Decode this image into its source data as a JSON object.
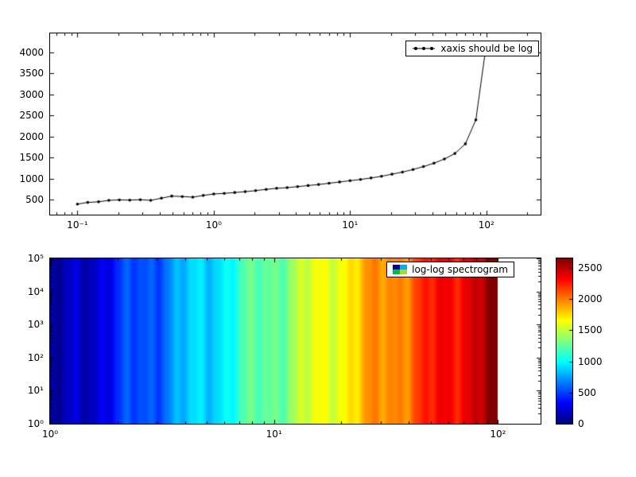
{
  "figure": {
    "background": "#ffffff"
  },
  "chart_data": [
    {
      "type": "line",
      "title": "",
      "xlabel": "",
      "ylabel": "",
      "xscale": "log",
      "yscale": "linear",
      "grid": false,
      "xlim": [
        0.063,
        250
      ],
      "ylim": [
        150,
        4450
      ],
      "x_ticks": [
        0.1,
        1,
        10,
        100
      ],
      "x_tick_labels": [
        "10⁻¹",
        "10⁰",
        "10¹",
        "10²"
      ],
      "y_ticks": [
        500,
        1000,
        1500,
        2000,
        2500,
        3000,
        3500,
        4000
      ],
      "y_tick_labels": [
        "500",
        "1000",
        "1500",
        "2000",
        "2500",
        "3000",
        "3500",
        "4000"
      ],
      "legend": {
        "label": "xaxis should be log",
        "position": "upper right"
      },
      "line_color": "#000000",
      "marker": "dot",
      "x": [
        0.1,
        0.119,
        0.143,
        0.17,
        0.203,
        0.242,
        0.289,
        0.345,
        0.413,
        0.492,
        0.588,
        0.702,
        0.838,
        1.0,
        1.194,
        1.425,
        1.701,
        2.031,
        2.424,
        2.894,
        3.455,
        4.125,
        4.924,
        5.878,
        7.017,
        8.377,
        10.0,
        11.94,
        14.25,
        17.01,
        20.31,
        24.24,
        28.94,
        34.55,
        41.25,
        49.24,
        58.78,
        70.17,
        83.77,
        100.0
      ],
      "y": [
        400,
        440,
        455,
        490,
        500,
        495,
        505,
        490,
        540,
        590,
        580,
        565,
        605,
        640,
        655,
        675,
        695,
        720,
        750,
        775,
        790,
        815,
        840,
        865,
        895,
        925,
        955,
        985,
        1020,
        1060,
        1110,
        1160,
        1220,
        1290,
        1370,
        1470,
        1600,
        1830,
        2400,
        4200
      ]
    },
    {
      "type": "heatmap",
      "title": "",
      "xscale": "log",
      "yscale": "log",
      "xlim": [
        1,
        155
      ],
      "ylim": [
        1,
        100000
      ],
      "mesh_x_range": [
        1,
        100
      ],
      "value_range": [
        0,
        2600
      ],
      "colormap": "jet",
      "x_ticks": [
        1,
        10,
        100
      ],
      "x_tick_labels": [
        "10⁰",
        "10¹",
        "10²"
      ],
      "y_ticks": [
        1,
        10,
        100,
        1000,
        10000,
        100000
      ],
      "y_tick_labels": [
        "10⁰",
        "10¹",
        "10²",
        "10³",
        "10⁴",
        "10⁵"
      ],
      "legend": {
        "label": "log-log spectrogram",
        "position": "upper right",
        "icon_colors": [
          "#000099",
          "#00aaff",
          "#00bb44",
          "#aadd22"
        ]
      },
      "colorbar": {
        "ticks": [
          0,
          500,
          1000,
          1500,
          2000,
          2500
        ],
        "tick_labels": [
          "0",
          "500",
          "1000",
          "1500",
          "2000",
          "2500"
        ],
        "vmin": 0,
        "vmax": 2650
      }
    }
  ]
}
